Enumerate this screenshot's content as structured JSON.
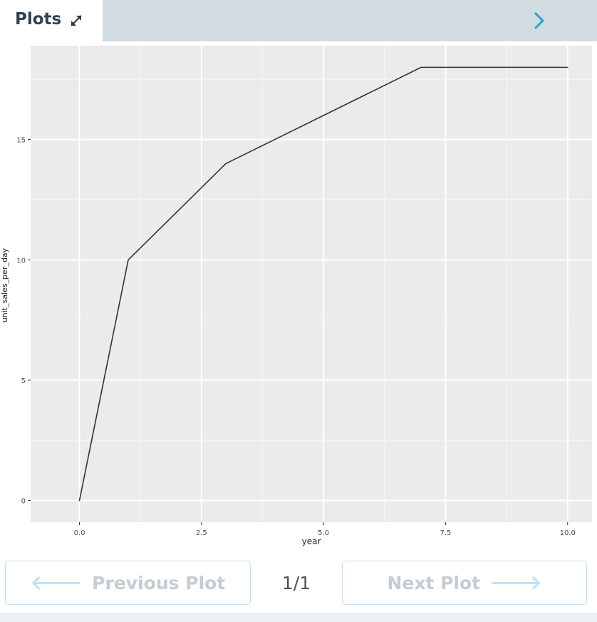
{
  "header": {
    "title": "Plots",
    "expand_icon": "expand-arrows-icon",
    "collapse_icon": "chevron-right-icon",
    "bar_color": "#d2dde3",
    "accent_color": "#3aa3c8"
  },
  "chart_data": {
    "type": "line",
    "x": [
      0,
      1,
      3,
      7,
      10
    ],
    "y": [
      0,
      10,
      14,
      18,
      18
    ],
    "xlabel": "year",
    "ylabel": "unit_sales_per_day",
    "xlim": [
      -1,
      10.5
    ],
    "ylim": [
      -0.9,
      18.9
    ],
    "xticks": [
      0,
      2.5,
      5,
      7.5,
      10
    ],
    "xtick_labels": [
      "0.0",
      "2.5",
      "5.0",
      "7.5",
      "10.0"
    ],
    "yticks": [
      0,
      5,
      10,
      15
    ],
    "ytick_labels": [
      "0",
      "5",
      "10",
      "15"
    ],
    "grid": true,
    "panel_color": "#ebebeb",
    "line_color": "#333333"
  },
  "pager": {
    "prev_label": "Previous Plot",
    "next_label": "Next Plot",
    "counter": "1/1",
    "prev_icon": "arrow-left-icon",
    "next_icon": "arrow-right-icon",
    "prev_arrow": "🡐",
    "next_arrow": "🡒"
  }
}
